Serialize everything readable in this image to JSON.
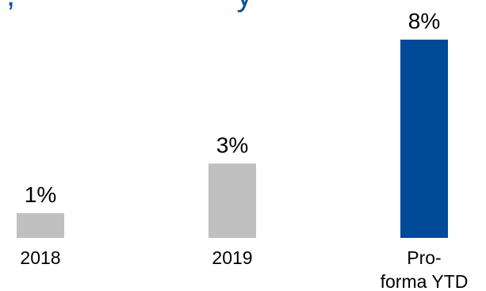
{
  "title_fragment": ",                        y",
  "chart_data": {
    "type": "bar",
    "title": "",
    "xlabel": "",
    "ylabel": "",
    "ylim": [
      0,
      8
    ],
    "grid": false,
    "categories": [
      {
        "lines": [
          "2018"
        ]
      },
      {
        "lines": [
          "2019"
        ]
      },
      {
        "lines": [
          "Pro-",
          "forma YTD"
        ]
      }
    ],
    "values": [
      1,
      3,
      8
    ],
    "value_labels": [
      "1%",
      "3%",
      "8%"
    ],
    "colors": [
      "#c0c0c0",
      "#c0c0c0",
      "#004a97"
    ]
  }
}
